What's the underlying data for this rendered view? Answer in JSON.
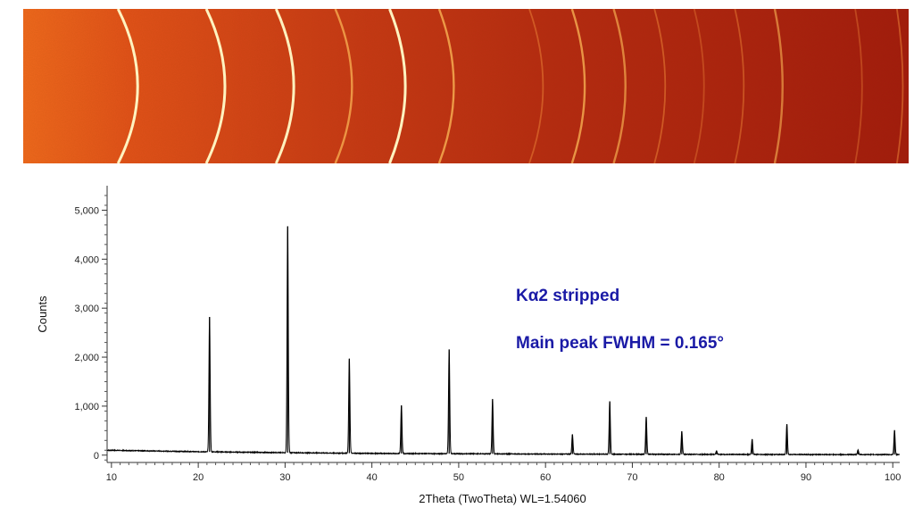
{
  "detector_image": {
    "ring_positions_2theta": [
      21.3,
      30.3,
      37.4,
      43.4,
      48.9,
      53.9,
      63.1,
      67.4,
      71.6,
      75.7,
      79.7,
      83.8,
      87.8,
      96.0,
      100.2
    ]
  },
  "chart_data": {
    "type": "line",
    "title": "",
    "xlabel": "2Theta (TwoTheta) WL=1.54060",
    "ylabel": "Counts",
    "xlim": [
      9.5,
      100.8
    ],
    "ylim": [
      -150,
      5500
    ],
    "x_ticks": [
      10,
      20,
      30,
      40,
      50,
      60,
      70,
      80,
      90,
      100
    ],
    "y_ticks": [
      0,
      1000,
      2000,
      3000,
      4000,
      5000
    ],
    "y_tick_labels": [
      "0",
      "1,000",
      "2,000",
      "3,000",
      "4,000",
      "5,000"
    ],
    "background": {
      "x": [
        9.5,
        20,
        30,
        40,
        50,
        60,
        70,
        80,
        90,
        100.8
      ],
      "y": [
        100,
        70,
        50,
        35,
        28,
        22,
        18,
        14,
        12,
        10
      ]
    },
    "peaks": [
      {
        "x": 21.3,
        "y": 2750
      },
      {
        "x": 30.3,
        "y": 4620
      },
      {
        "x": 37.4,
        "y": 1930
      },
      {
        "x": 43.4,
        "y": 980
      },
      {
        "x": 48.9,
        "y": 2130
      },
      {
        "x": 53.9,
        "y": 1120
      },
      {
        "x": 63.1,
        "y": 400
      },
      {
        "x": 67.4,
        "y": 1080
      },
      {
        "x": 71.6,
        "y": 760
      },
      {
        "x": 75.7,
        "y": 470
      },
      {
        "x": 79.7,
        "y": 70
      },
      {
        "x": 83.8,
        "y": 310
      },
      {
        "x": 87.8,
        "y": 620
      },
      {
        "x": 96.0,
        "y": 95
      },
      {
        "x": 100.2,
        "y": 500
      }
    ],
    "fwhm_deg": 0.165,
    "line_color": "#000000",
    "annotations": [
      {
        "text": "Kα2 stripped",
        "color": "#1a1aa6"
      },
      {
        "text": "Main peak FWHM = 0.165°",
        "color": "#1a1aa6"
      }
    ]
  }
}
